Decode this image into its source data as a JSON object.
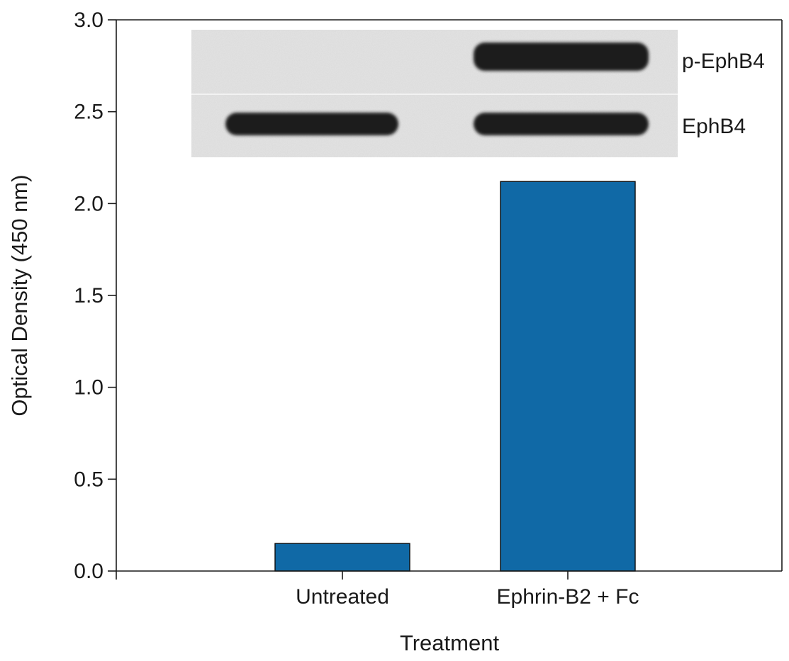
{
  "chart_data": {
    "type": "bar",
    "categories": [
      "Untreated",
      "Ephrin-B2 + Fc"
    ],
    "series": [
      {
        "values": [
          0.15,
          2.12
        ]
      }
    ],
    "xlabel": "Treatment",
    "ylabel": "Optical Density (450 nm)",
    "ylim": [
      0.0,
      3.0
    ],
    "yticks": [
      "0.0",
      "0.5",
      "1.0",
      "1.5",
      "2.0",
      "2.5",
      "3.0"
    ],
    "ytick_values": [
      0.0,
      0.5,
      1.0,
      1.5,
      2.0,
      2.5,
      3.0
    ],
    "grid": false,
    "bar_color": "#1069a6",
    "inset": {
      "type": "western-blot",
      "rows": [
        {
          "label": "p-EphB4",
          "band_present": [
            false,
            true
          ]
        },
        {
          "label": "EphB4",
          "band_present": [
            true,
            true
          ]
        }
      ]
    }
  }
}
